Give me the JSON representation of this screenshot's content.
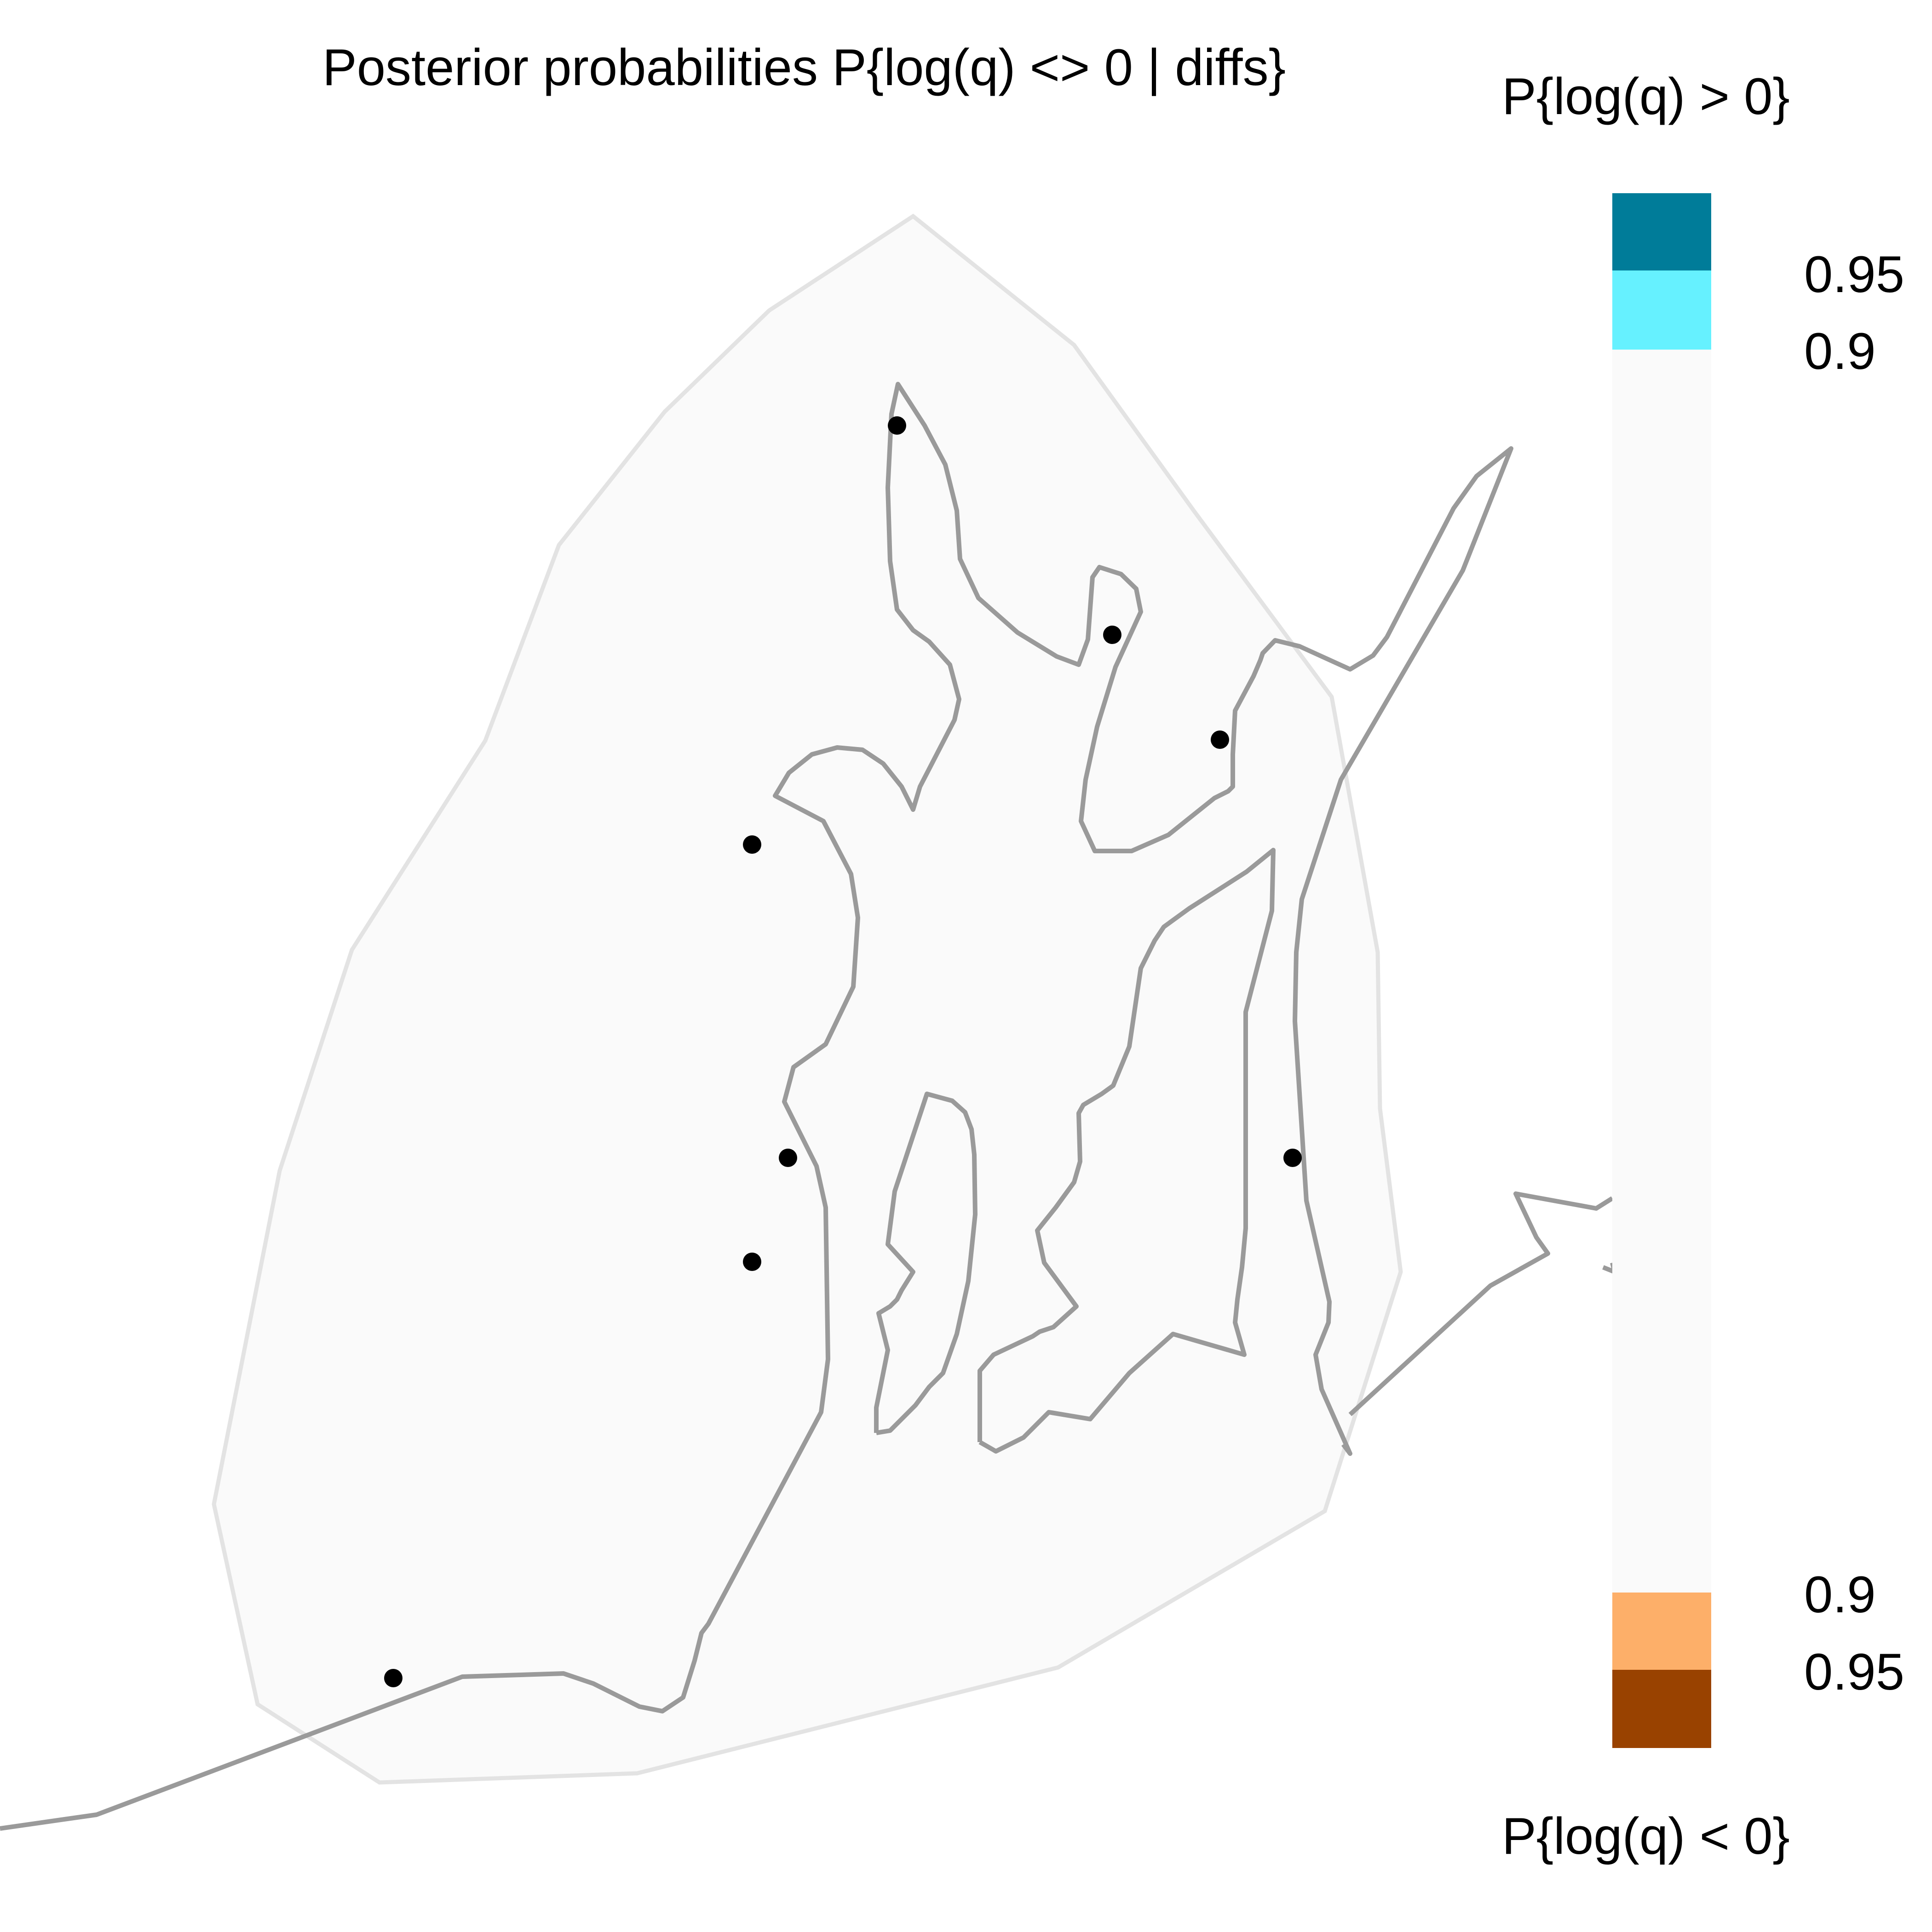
{
  "map": {
    "title": "Posterior probabilities P{log(q) <> 0 | diffs}",
    "colors": {
      "hull_fill": "#FAFAFA",
      "hull_outline": "#E3E3E3",
      "coastline": "#9A9A9A",
      "sample_point": "#000000"
    },
    "sample_points_count": 8
  },
  "legend": {
    "title_top": "P{log(q) > 0}",
    "title_bottom": "P{log(q) < 0}",
    "bins": [
      {
        "label": "0.95",
        "color": "#007C99",
        "meaning": "P>0 >= 0.95"
      },
      {
        "label": "0.9",
        "color": "#66F1FF",
        "meaning": "P>0 0.9-0.95"
      },
      {
        "label": "",
        "color": "#FAFAFA",
        "meaning": "neutral"
      },
      {
        "label": "0.9",
        "color": "#FDAF69",
        "meaning": "P<0 0.9-0.95"
      },
      {
        "label": "0.95",
        "color": "#994200",
        "meaning": "P<0 >= 0.95"
      }
    ],
    "tick_labels": {
      "upper_095": "0.95",
      "upper_09": "0.9",
      "lower_09": "0.9",
      "lower_095": "0.95"
    }
  }
}
